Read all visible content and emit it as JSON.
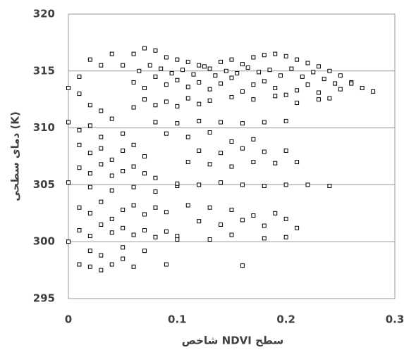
{
  "chart_data": {
    "type": "scatter",
    "x_label": "شاخص NDVI سطح",
    "y_label": "دمای سطحی (K)",
    "x": [
      0.05,
      0.06,
      0.07,
      0.08,
      0.09,
      0.1,
      0.11,
      0.12,
      0.13,
      0.14,
      0.15,
      0.16,
      0.17,
      0.18,
      0.19,
      0.2,
      0.21,
      0.22,
      0.23,
      0.24,
      0.25,
      0.26,
      0.27,
      0.28,
      0.06,
      0.07,
      0.08,
      0.09,
      0.1,
      0.11,
      0.12,
      0.13,
      0.14,
      0.15,
      0.16,
      0.17,
      0.18,
      0.19,
      0.2,
      0.21,
      0.22,
      0.23,
      0.24,
      0.25,
      0.26,
      0.065,
      0.075,
      0.085,
      0.095,
      0.105,
      0.115,
      0.125,
      0.135,
      0.145,
      0.155,
      0.165,
      0.175,
      0.185,
      0.195,
      0.205,
      0.215,
      0.225,
      0.235,
      0.245,
      0.07,
      0.09,
      0.11,
      0.13,
      0.15,
      0.17,
      0.19,
      0.21,
      0.23,
      0.06,
      0.08,
      0.1,
      0.12,
      0,
      0.01,
      0.02,
      0.03,
      0.04,
      0.01,
      0.02,
      0.03,
      0,
      0.01,
      0.02,
      0.03,
      0.04,
      0.05,
      0.01,
      0.02,
      0.03,
      0.04,
      0.05,
      0.06,
      0.07,
      0.01,
      0.02,
      0.03,
      0.04,
      0.05,
      0.06,
      0.07,
      0.08,
      0,
      0.02,
      0.04,
      0.06,
      0.08,
      0.1,
      0.01,
      0.02,
      0.03,
      0.04,
      0.05,
      0.06,
      0.07,
      0.08,
      0.09,
      0.01,
      0.02,
      0.03,
      0.04,
      0.05,
      0.06,
      0.07,
      0.08,
      0.09,
      0.1,
      0,
      0.02,
      0.03,
      0.05,
      0.07,
      0.01,
      0.02,
      0.03,
      0.04,
      0.05,
      0.06,
      0.09,
      0.16,
      0.08,
      0.1,
      0.12,
      0.14,
      0.16,
      0.18,
      0.2,
      0.09,
      0.11,
      0.13,
      0.15,
      0.17,
      0.12,
      0.14,
      0.16,
      0.18,
      0.2,
      0.11,
      0.13,
      0.15,
      0.17,
      0.19,
      0.21,
      0.1,
      0.12,
      0.14,
      0.16,
      0.18,
      0.2,
      0.22,
      0.11,
      0.13,
      0.15,
      0.17,
      0.19,
      0.12,
      0.14,
      0.16,
      0.18,
      0.2,
      0.1,
      0.13,
      0.15,
      0.18,
      0.2,
      0.24,
      0.21
    ],
    "values": [
      315.5,
      316.5,
      317,
      316.8,
      316.2,
      316,
      315.8,
      315.5,
      315.2,
      315.8,
      316,
      315.6,
      316.2,
      316.4,
      316.5,
      316.3,
      316,
      315.7,
      315.4,
      315,
      314.6,
      314,
      313.5,
      313.2,
      314,
      313.5,
      314.5,
      313.8,
      314.2,
      313.6,
      314,
      313.4,
      313.9,
      314.4,
      313.2,
      313.8,
      314.1,
      313.5,
      312.9,
      313.3,
      313.8,
      313.1,
      312.6,
      313.4,
      313.9,
      315,
      315.5,
      315.2,
      314.8,
      315.1,
      314.7,
      315.4,
      314.6,
      315,
      314.8,
      315.3,
      314.9,
      315.1,
      314.6,
      315.2,
      314.5,
      314.9,
      314.3,
      313.9,
      312.5,
      312.3,
      312.6,
      312.4,
      312.7,
      312.5,
      312.8,
      312.2,
      312.5,
      311.8,
      312,
      311.9,
      312.1,
      313.5,
      314.5,
      316,
      315.5,
      316.5,
      313,
      312,
      311.5,
      310.5,
      309.8,
      310.2,
      309.2,
      310.8,
      309.5,
      308.5,
      307.8,
      308.2,
      307.2,
      308,
      308.5,
      307.5,
      306.5,
      306,
      306.8,
      305.8,
      306.2,
      306.6,
      306,
      305.6,
      305.2,
      304.8,
      304.5,
      304.8,
      304.4,
      304.9,
      303,
      302.5,
      303.5,
      302,
      302.8,
      303.2,
      302.4,
      303,
      302.6,
      301,
      300.5,
      301.5,
      300.8,
      301.2,
      300.6,
      301,
      300.4,
      300.9,
      300.2,
      300,
      299.2,
      298.8,
      299.5,
      299.2,
      298,
      297.8,
      297.5,
      298,
      298.5,
      297.8,
      298,
      297.9,
      310.5,
      310.4,
      310.6,
      310.5,
      310.4,
      310.5,
      310.6,
      309.5,
      309.2,
      309.6,
      308.8,
      309,
      308,
      307.8,
      308.2,
      307.9,
      308,
      307,
      306.8,
      306.6,
      307,
      306.9,
      307,
      305.1,
      305,
      305.2,
      305,
      304.9,
      305,
      305,
      303.2,
      303,
      302.8,
      302.3,
      302.5,
      301.8,
      301.5,
      301.9,
      301.4,
      302,
      300.5,
      300.2,
      300.6,
      300.3,
      300.4,
      304.9,
      301.2
    ],
    "color": "#000000",
    "xlim": [
      0,
      0.3
    ],
    "xticks": [
      0,
      0.1,
      0.2,
      0.3
    ],
    "ylim": [
      295,
      320
    ],
    "yticks": [
      295,
      300,
      305,
      310,
      315,
      320
    ],
    "grid": true
  }
}
